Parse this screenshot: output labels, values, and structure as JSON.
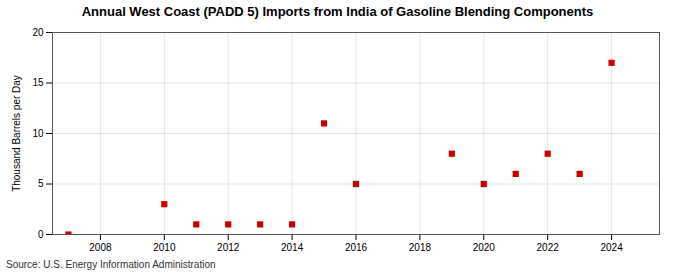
{
  "chart_data": {
    "type": "scatter",
    "title": "Annual West Coast (PADD 5) Imports from India of Gasoline Blending Components",
    "ylabel": "Thousand Barrels per Day",
    "source": "Source: U.S. Energy Information Administration",
    "x": [
      2007,
      2010,
      2011,
      2012,
      2013,
      2014,
      2015,
      2016,
      2019,
      2020,
      2021,
      2022,
      2023,
      2024
    ],
    "values": [
      0,
      3,
      1,
      1,
      1,
      1,
      11,
      5,
      8,
      5,
      6,
      8,
      6,
      17
    ],
    "color": "#cc0000",
    "marker": "square",
    "xlim": [
      2006.5,
      2025.5
    ],
    "ylim": [
      0,
      20
    ],
    "xticks": [
      2008,
      2010,
      2012,
      2014,
      2016,
      2018,
      2020,
      2022,
      2024
    ],
    "yticks": [
      0,
      5,
      10,
      15,
      20
    ],
    "grid": true
  }
}
